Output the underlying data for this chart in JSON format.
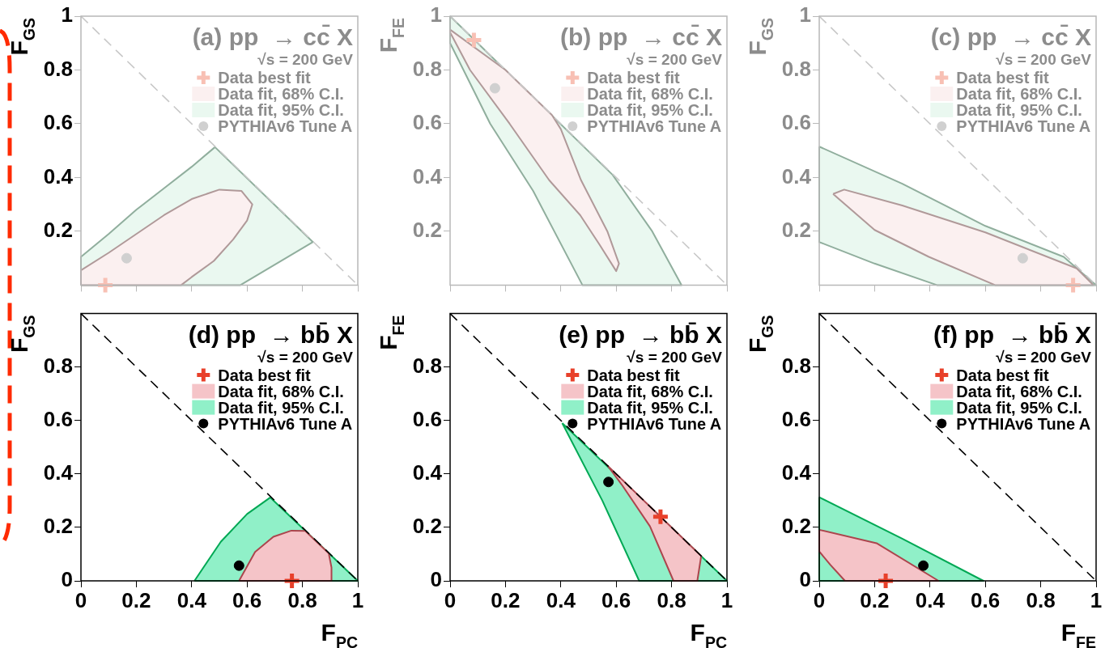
{
  "chart_data": [
    {
      "type": "scatter",
      "title": "(a) pp  → cc̄ X",
      "subtitle": "√s = 200 GeV",
      "ylabel": "F$_{GS}$",
      "xlim": [
        0,
        1
      ],
      "ylim": [
        0,
        1
      ],
      "xticks": [
        0,
        0.2,
        0.4,
        0.6,
        0.8,
        1
      ],
      "yticks": [
        0.2,
        0.4,
        0.6,
        0.8,
        1
      ],
      "tick_labels": "y",
      "legend": "top right",
      "series": [
        {
          "type": "line",
          "color": "#c8c8c8",
          "line_style": "dashed",
          "x": [
            0,
            1
          ],
          "values": [
            1,
            0
          ]
        },
        {
          "name": "Data best fit",
          "type": "scatter",
          "marker": "cross",
          "color": "#f8c0b4",
          "x": [
            0.088
          ],
          "values": [
            0
          ]
        },
        {
          "name": "Data fit, 68% C.I.",
          "type": "area",
          "color": "#fbf0f0",
          "x": [
            0,
            0,
            0.1,
            0.2,
            0.3,
            0.4,
            0.5,
            0.58,
            0.619,
            0.6,
            0.55,
            0.48,
            0.4,
            0.362,
            0
          ],
          "values": [
            0,
            0.055,
            0.12,
            0.19,
            0.26,
            0.32,
            0.355,
            0.35,
            0.3,
            0.24,
            0.17,
            0.09,
            0.03,
            0,
            0
          ]
        },
        {
          "name": "Data fit, 95% C.I.",
          "type": "area",
          "color": "#eaf8f0",
          "x": [
            0,
            0,
            0.1,
            0.2,
            0.3,
            0.4,
            0.484,
            0.838,
            0.576,
            0
          ],
          "values": [
            0,
            0.105,
            0.19,
            0.28,
            0.36,
            0.44,
            0.513,
            0.16,
            0,
            0
          ]
        },
        {
          "name": "PYTHIAv6 Tune A",
          "type": "scatter",
          "marker": "circle",
          "color": "#d0d0d0",
          "x": [
            0.165
          ],
          "values": [
            0.1
          ]
        }
      ]
    },
    {
      "type": "scatter",
      "title": "(b) pp  → cc̄ X",
      "subtitle": "√s = 200 GeV",
      "ylabel": "F$_{FE}$",
      "xlim": [
        0,
        1
      ],
      "ylim": [
        0,
        1
      ],
      "xticks": [
        0,
        0.2,
        0.4,
        0.6,
        0.8,
        1
      ],
      "yticks": [
        0.2,
        0.4,
        0.6,
        0.8,
        1
      ],
      "tick_labels": "y",
      "legend": "top right",
      "series": [
        {
          "type": "line",
          "color": "#c8c8c8",
          "line_style": "dashed",
          "x": [
            0,
            1
          ],
          "values": [
            1,
            0
          ]
        },
        {
          "name": "Data best fit",
          "type": "scatter",
          "marker": "cross",
          "color": "#f8c0b4",
          "x": [
            0.086
          ],
          "values": [
            0.911
          ]
        },
        {
          "name": "Data fit, 68% C.I.",
          "type": "area",
          "color": "#fbf0f0",
          "x": [
            0,
            0.2,
            0.368,
            0.4,
            0.473,
            0.568,
            0.61,
            0.6,
            0.54,
            0.47,
            0.358,
            0.215,
            0.072,
            0,
            0
          ],
          "values": [
            0.95,
            0.8,
            0.632,
            0.58,
            0.39,
            0.2,
            0.08,
            0.052,
            0.15,
            0.26,
            0.39,
            0.6,
            0.8,
            0.94,
            0.95
          ]
        },
        {
          "name": "Data fit, 95% C.I.",
          "type": "area",
          "color": "#eaf8f0",
          "x": [
            0,
            0.587,
            0.73,
            0.836,
            0.478,
            0.3,
            0.145,
            0,
            0
          ],
          "values": [
            1,
            0.41,
            0.2,
            0,
            0,
            0.35,
            0.6,
            0.9,
            1
          ]
        },
        {
          "name": "PYTHIAv6 Tune A",
          "type": "scatter",
          "marker": "circle",
          "color": "#d0d0d0",
          "x": [
            0.162
          ],
          "values": [
            0.732
          ]
        }
      ]
    },
    {
      "type": "scatter",
      "title": "(c) pp  → cc̄ X",
      "subtitle": "√s = 200 GeV",
      "ylabel": "F$_{GS}$",
      "xlim": [
        0,
        1
      ],
      "ylim": [
        0,
        1
      ],
      "xticks": [
        0,
        0.2,
        0.4,
        0.6,
        0.8,
        1
      ],
      "yticks": [
        0.2,
        0.4,
        0.6,
        0.8,
        1
      ],
      "tick_labels": "y",
      "legend": "top right",
      "series": [
        {
          "type": "line",
          "color": "#c8c8c8",
          "line_style": "dashed",
          "x": [
            0,
            1
          ],
          "values": [
            1,
            0
          ]
        },
        {
          "name": "Data best fit",
          "type": "scatter",
          "marker": "cross",
          "color": "#f8c0b4",
          "x": [
            0.917
          ],
          "values": [
            0
          ]
        },
        {
          "name": "Data fit, 68% C.I.",
          "type": "area",
          "color": "#fbf0f0",
          "x": [
            0.05,
            0.09,
            0.3,
            0.6,
            0.93,
            0.99,
            0.635,
            0.396,
            0.2,
            0.05
          ],
          "values": [
            0.339,
            0.355,
            0.296,
            0.196,
            0.062,
            0,
            0,
            0.105,
            0.205,
            0.339
          ]
        },
        {
          "name": "Data fit, 95% C.I.",
          "type": "area",
          "color": "#eaf8f0",
          "x": [
            0,
            0.3,
            0.6,
            0.883,
            1,
            0.425,
            0.2,
            0,
            0
          ],
          "values": [
            0.515,
            0.377,
            0.22,
            0.105,
            0,
            0,
            0.08,
            0.16,
            0.515
          ]
        },
        {
          "name": "PYTHIAv6 Tune A",
          "type": "scatter",
          "marker": "circle",
          "color": "#d0d0d0",
          "x": [
            0.735
          ],
          "values": [
            0.1
          ]
        }
      ]
    },
    {
      "type": "scatter",
      "title": "(d) pp  → bb̄ X",
      "subtitle": "√s = 200 GeV",
      "xlabel": "F$_{PC}$",
      "ylabel": "F$_{GS}$",
      "xlim": [
        0,
        1
      ],
      "ylim": [
        0,
        1
      ],
      "xticks": [
        0,
        0.2,
        0.4,
        0.6,
        0.8,
        1
      ],
      "yticks": [
        0,
        0.2,
        0.4,
        0.6,
        0.8
      ],
      "legend": "top right",
      "series": [
        {
          "type": "line",
          "color": "#000000",
          "line_style": "dashed",
          "x": [
            0,
            1
          ],
          "values": [
            1,
            0
          ]
        },
        {
          "name": "Data best fit",
          "type": "scatter",
          "marker": "cross",
          "color": "#e8402a",
          "x": [
            0.762
          ],
          "values": [
            0
          ]
        },
        {
          "name": "Data fit, 68% C.I.",
          "type": "area",
          "color": "#f5c4c8",
          "x": [
            0.571,
            0.629,
            0.695,
            0.76,
            0.81,
            0.895,
            0.905,
            0.905,
            0.571
          ],
          "values": [
            0,
            0.108,
            0.165,
            0.188,
            0.187,
            0.103,
            0.05,
            0,
            0
          ]
        },
        {
          "name": "Data fit, 95% C.I.",
          "type": "area",
          "color": "#90f0c8",
          "x": [
            0.41,
            0.505,
            0.6,
            0.684,
            1,
            0.41
          ],
          "values": [
            0,
            0.146,
            0.25,
            0.312,
            0,
            0
          ]
        },
        {
          "name": "PYTHIAv6 Tune A",
          "type": "scatter",
          "marker": "circle",
          "color": "#000000",
          "x": [
            0.571
          ],
          "values": [
            0.057
          ]
        }
      ]
    },
    {
      "type": "scatter",
      "title": "(e) pp  → bb̄ X",
      "subtitle": "√s = 200 GeV",
      "xlabel": "F$_{PC}$",
      "ylabel": "F$_{FE}$",
      "xlim": [
        0,
        1
      ],
      "ylim": [
        0,
        1
      ],
      "xticks": [
        0,
        0.2,
        0.4,
        0.6,
        0.8,
        1
      ],
      "yticks": [
        0,
        0.2,
        0.4,
        0.6,
        0.8
      ],
      "legend": "top right",
      "series": [
        {
          "type": "line",
          "color": "#000000",
          "line_style": "dashed",
          "x": [
            0,
            1
          ],
          "values": [
            1,
            0
          ]
        },
        {
          "name": "Data best fit",
          "type": "scatter",
          "marker": "cross",
          "color": "#e8402a",
          "x": [
            0.76
          ],
          "values": [
            0.24
          ]
        },
        {
          "name": "Data fit, 68% C.I.",
          "type": "area",
          "color": "#f5c4c8",
          "x": [
            0.569,
            0.907,
            0.893,
            0.807,
            0.722,
            0.62,
            0.569
          ],
          "values": [
            0.431,
            0.093,
            0,
            0,
            0.204,
            0.36,
            0.431
          ]
        },
        {
          "name": "Data fit, 95% C.I.",
          "type": "area",
          "color": "#90f0c8",
          "x": [
            0.405,
            1,
            0.683,
            0.55,
            0.405
          ],
          "values": [
            0.59,
            0,
            0,
            0.3,
            0.59
          ]
        },
        {
          "name": "PYTHIAv6 Tune A",
          "type": "scatter",
          "marker": "circle",
          "color": "#000000",
          "x": [
            0.572
          ],
          "values": [
            0.37
          ]
        }
      ]
    },
    {
      "type": "scatter",
      "title": "(f) pp  → bb̄ X",
      "subtitle": "√s = 200 GeV",
      "xlabel": "F$_{FE}$",
      "ylabel": "F$_{GS}$",
      "xlim": [
        0,
        1
      ],
      "ylim": [
        0,
        1
      ],
      "xticks": [
        0,
        0.2,
        0.4,
        0.6,
        0.8,
        1
      ],
      "yticks": [
        0,
        0.2,
        0.4,
        0.6,
        0.8
      ],
      "legend": "top right",
      "series": [
        {
          "type": "line",
          "color": "#000000",
          "line_style": "dashed",
          "x": [
            0,
            1
          ],
          "values": [
            1,
            0
          ]
        },
        {
          "name": "Data best fit",
          "type": "scatter",
          "marker": "cross",
          "color": "#e8402a",
          "x": [
            0.24
          ],
          "values": [
            0
          ]
        },
        {
          "name": "Data fit, 68% C.I.",
          "type": "area",
          "color": "#f5c4c8",
          "x": [
            0,
            0.207,
            0.431,
            0.093,
            0.04,
            0,
            0
          ],
          "values": [
            0.191,
            0.141,
            0,
            0,
            0.06,
            0.11,
            0.191
          ]
        },
        {
          "name": "Data fit, 95% C.I.",
          "type": "area",
          "color": "#90f0c8",
          "x": [
            0,
            0.3,
            0.593,
            0,
            0
          ],
          "values": [
            0.313,
            0.158,
            0,
            0,
            0.313
          ]
        },
        {
          "name": "PYTHIAv6 Tune A",
          "type": "scatter",
          "marker": "circle",
          "color": "#000000",
          "x": [
            0.376
          ],
          "values": [
            0.057
          ]
        }
      ]
    }
  ]
}
